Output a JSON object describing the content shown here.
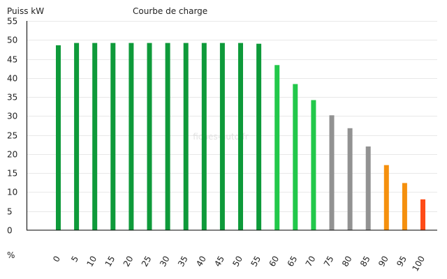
{
  "chart_data": {
    "type": "bar",
    "title": "Courbe de charge",
    "ylabel": "Puiss kW",
    "xlabel": "%",
    "watermark": "fiches-auto.fr",
    "ylim": [
      0,
      55
    ],
    "yticks": [
      0,
      5,
      10,
      15,
      20,
      25,
      30,
      35,
      40,
      45,
      50,
      55
    ],
    "grid": true,
    "categories": [
      "0",
      "5",
      "10",
      "15",
      "20",
      "25",
      "30",
      "35",
      "40",
      "45",
      "50",
      "55",
      "60",
      "65",
      "70",
      "75",
      "80",
      "85",
      "90",
      "95",
      "100"
    ],
    "values": [
      48.6,
      49.2,
      49.2,
      49.2,
      49.2,
      49.2,
      49.2,
      49.2,
      49.2,
      49.2,
      49.2,
      49.0,
      43.4,
      38.4,
      34.2,
      30.2,
      26.8,
      22.0,
      17.1,
      12.4,
      8.1
    ],
    "colors": [
      "#0e9a3a",
      "#0e9a3a",
      "#0e9a3a",
      "#0e9a3a",
      "#0e9a3a",
      "#0e9a3a",
      "#0e9a3a",
      "#0e9a3a",
      "#0e9a3a",
      "#0e9a3a",
      "#0e9a3a",
      "#0e9a3a",
      "#22c84a",
      "#22c84a",
      "#22c84a",
      "#929292",
      "#929292",
      "#929292",
      "#f5900e",
      "#f5900e",
      "#ff4b17"
    ]
  }
}
